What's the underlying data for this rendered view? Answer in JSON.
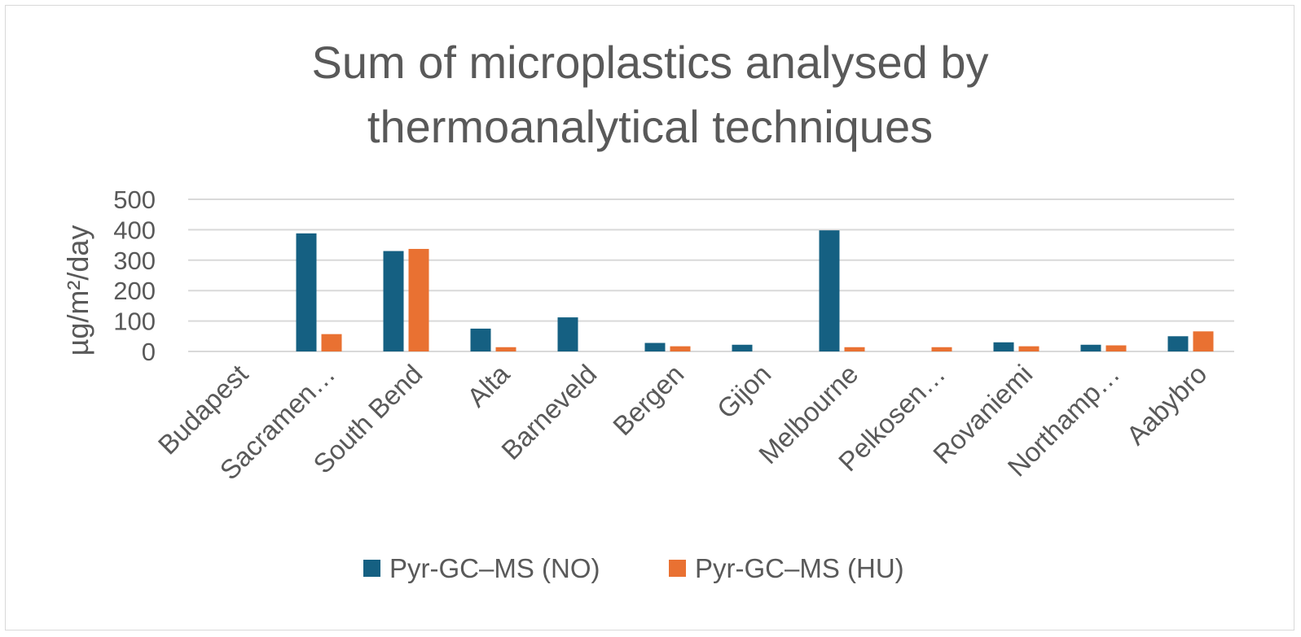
{
  "chart_data": {
    "type": "bar",
    "title": [
      "Sum of microplastics analysed by",
      "thermoanalytical techniques"
    ],
    "ylabel": "µg/m²/day",
    "ylim": [
      0,
      500
    ],
    "yticks": [
      0,
      100,
      200,
      300,
      400,
      500
    ],
    "categories": [
      "Budapest",
      "Sacramen…",
      "South Bend",
      "Alta",
      "Barneveld",
      "Bergen",
      "Gijon",
      "Melbourne",
      "Pelkosen…",
      "Rovaniemi",
      "Northamp…",
      "Aabybro"
    ],
    "series": [
      {
        "name": "Pyr-GC–MS (NO)",
        "color": "#156082",
        "values": [
          0,
          388,
          330,
          75,
          112,
          28,
          22,
          398,
          0,
          30,
          22,
          50
        ]
      },
      {
        "name": "Pyr-GC–MS (HU)",
        "color": "#E97132",
        "values": [
          0,
          57,
          337,
          14,
          0,
          17,
          0,
          14,
          14,
          17,
          20,
          66
        ]
      }
    ],
    "grid": true,
    "legend_position": "bottom"
  }
}
